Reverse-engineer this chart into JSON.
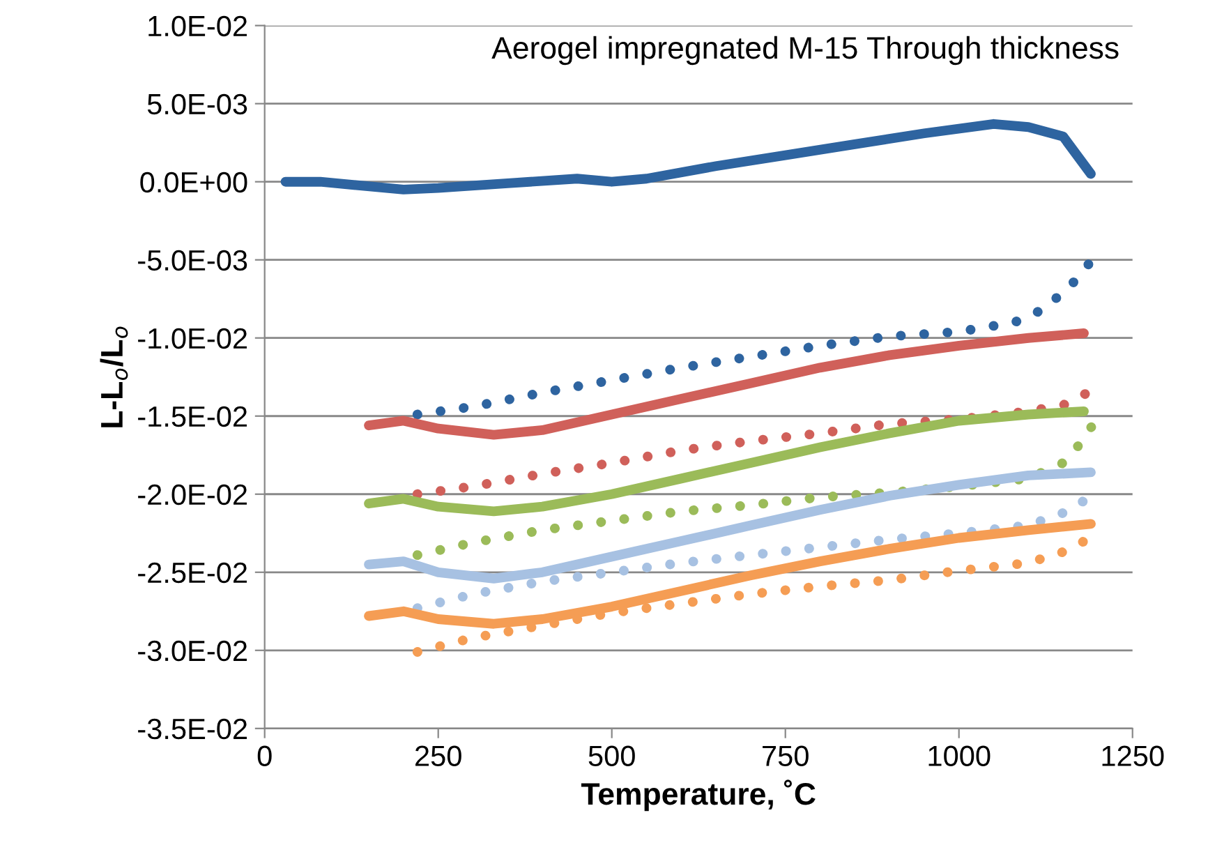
{
  "chart_data": {
    "type": "line",
    "xlabel": "Temperature, ˚C",
    "ylabel": "L-L$_{o}$/L$_{o}$",
    "annotations": [
      "Aerogel impregnated M-15 Through thickness"
    ],
    "xlim": [
      0,
      1250
    ],
    "xticks": [
      0,
      250,
      500,
      750,
      1000,
      1250
    ],
    "ylim": [
      -0.035,
      0.01
    ],
    "yticks": [
      {
        "value": -0.035,
        "label": "-3.5E-02"
      },
      {
        "value": -0.03,
        "label": "-3.0E-02"
      },
      {
        "value": -0.025,
        "label": "-2.5E-02"
      },
      {
        "value": -0.02,
        "label": "-2.0E-02"
      },
      {
        "value": -0.015,
        "label": "-1.5E-02"
      },
      {
        "value": -0.01,
        "label": "-1.0E-02"
      },
      {
        "value": -0.005,
        "label": "-5.0E-03"
      },
      {
        "value": 0,
        "label": "0.0E+00"
      },
      {
        "value": 0.005,
        "label": "5.0E-03"
      },
      {
        "value": 0.01,
        "label": "1.0E-02"
      }
    ],
    "grid": "y",
    "marker": "none",
    "series": [
      {
        "color": "#2e64a0",
        "line_style": "solid",
        "x": [
          30,
          80,
          200,
          250,
          350,
          450,
          500,
          550,
          650,
          750,
          850,
          950,
          1050,
          1100,
          1150,
          1190
        ],
        "values": [
          0,
          0,
          -0.0005,
          -0.0004,
          -0.0001,
          0.0002,
          0,
          0.0002,
          0.001,
          0.0017,
          0.0024,
          0.0031,
          0.0037,
          0.0035,
          0.0029,
          0.0005
        ]
      },
      {
        "color": "#2e64a0",
        "line_style": "dotted",
        "x": [
          220,
          300,
          400,
          500,
          600,
          700,
          800,
          900,
          1000,
          1080,
          1120,
          1160,
          1190
        ],
        "values": [
          -0.0149,
          -0.0144,
          -0.0135,
          -0.0127,
          -0.0119,
          -0.0112,
          -0.0105,
          -0.0099,
          -0.0096,
          -0.009,
          -0.0082,
          -0.0067,
          -0.0051
        ]
      },
      {
        "color": "#d0605a",
        "line_style": "solid",
        "x": [
          150,
          200,
          250,
          330,
          400,
          500,
          600,
          700,
          800,
          900,
          1000,
          1100,
          1180
        ],
        "values": [
          -0.0156,
          -0.0153,
          -0.0158,
          -0.0162,
          -0.0159,
          -0.0149,
          -0.0139,
          -0.0129,
          -0.0119,
          -0.0111,
          -0.0105,
          -0.01,
          -0.0097
        ]
      },
      {
        "color": "#d0605a",
        "line_style": "dotted",
        "x": [
          220,
          300,
          400,
          500,
          600,
          700,
          800,
          900,
          1000,
          1100,
          1150,
          1190
        ],
        "values": [
          -0.02,
          -0.0195,
          -0.0187,
          -0.018,
          -0.0172,
          -0.0166,
          -0.0161,
          -0.0155,
          -0.0152,
          -0.0147,
          -0.0143,
          -0.0134
        ]
      },
      {
        "color": "#9bbb59",
        "line_style": "solid",
        "x": [
          150,
          200,
          250,
          330,
          400,
          500,
          600,
          700,
          800,
          900,
          1000,
          1100,
          1180
        ],
        "values": [
          -0.0206,
          -0.0203,
          -0.0208,
          -0.0211,
          -0.0208,
          -0.02,
          -0.019,
          -0.018,
          -0.017,
          -0.0161,
          -0.0153,
          -0.0149,
          -0.0147
        ]
      },
      {
        "color": "#9bbb59",
        "line_style": "dotted",
        "x": [
          220,
          300,
          400,
          500,
          600,
          700,
          800,
          900,
          1000,
          1100,
          1150,
          1180,
          1200
        ],
        "values": [
          -0.0239,
          -0.0231,
          -0.0223,
          -0.0217,
          -0.0211,
          -0.0207,
          -0.0202,
          -0.0199,
          -0.0195,
          -0.019,
          -0.018,
          -0.0165,
          -0.015
        ]
      },
      {
        "color": "#a7c1e2",
        "line_style": "solid",
        "x": [
          150,
          200,
          250,
          330,
          400,
          500,
          600,
          700,
          800,
          900,
          1000,
          1100,
          1190
        ],
        "values": [
          -0.0245,
          -0.0243,
          -0.025,
          -0.0254,
          -0.025,
          -0.024,
          -0.023,
          -0.022,
          -0.021,
          -0.0201,
          -0.0194,
          -0.0188,
          -0.0186
        ]
      },
      {
        "color": "#a7c1e2",
        "line_style": "dotted",
        "x": [
          220,
          300,
          400,
          500,
          600,
          700,
          800,
          900,
          1000,
          1100,
          1150,
          1185
        ],
        "values": [
          -0.0273,
          -0.0264,
          -0.0256,
          -0.025,
          -0.0244,
          -0.0239,
          -0.0234,
          -0.0229,
          -0.0225,
          -0.022,
          -0.0212,
          -0.0203
        ]
      },
      {
        "color": "#f59d54",
        "line_style": "solid",
        "x": [
          150,
          200,
          250,
          330,
          400,
          500,
          600,
          700,
          800,
          900,
          1000,
          1100,
          1190
        ],
        "values": [
          -0.0278,
          -0.0275,
          -0.028,
          -0.0283,
          -0.028,
          -0.0272,
          -0.0262,
          -0.0252,
          -0.0243,
          -0.0235,
          -0.0228,
          -0.0223,
          -0.0219
        ]
      },
      {
        "color": "#f59d54",
        "line_style": "dotted",
        "x": [
          220,
          300,
          400,
          500,
          600,
          700,
          800,
          900,
          1000,
          1100,
          1150,
          1185
        ],
        "values": [
          -0.0301,
          -0.0292,
          -0.0284,
          -0.0276,
          -0.027,
          -0.0264,
          -0.0259,
          -0.0255,
          -0.0249,
          -0.0244,
          -0.0237,
          -0.0229
        ]
      }
    ]
  }
}
